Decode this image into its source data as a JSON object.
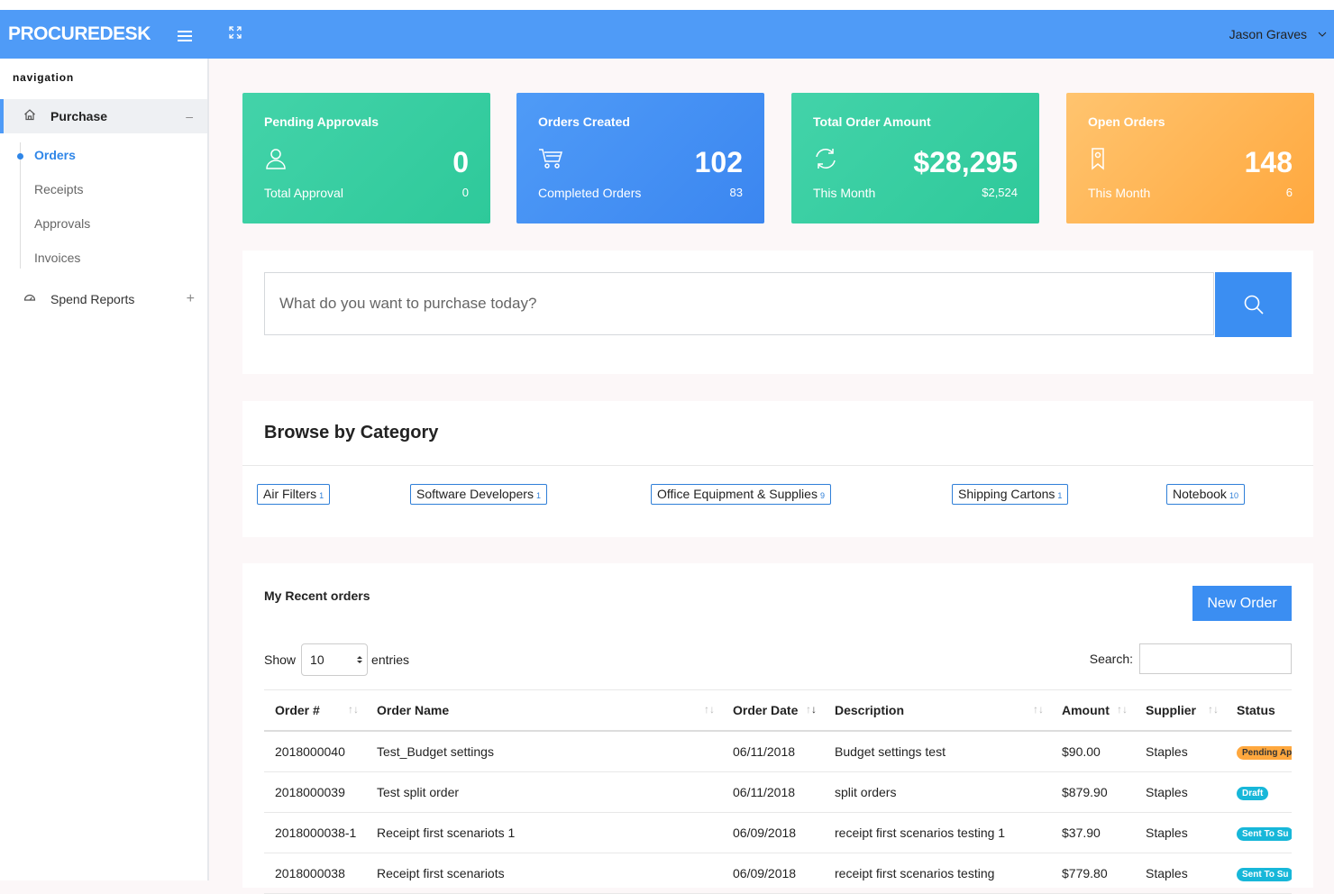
{
  "app": {
    "brand": "PROCUREDESK",
    "user_name": "Jason Graves"
  },
  "colors": {
    "primary": "#4f9bf7",
    "green": "#2ec99a",
    "orange": "#ffa83e",
    "link": "#2f86e8"
  },
  "sidebar": {
    "heading": "navigation",
    "purchase": {
      "label": "Purchase",
      "toggle": "–"
    },
    "items": [
      {
        "label": "Orders",
        "active": true
      },
      {
        "label": "Receipts"
      },
      {
        "label": "Approvals"
      },
      {
        "label": "Invoices"
      }
    ],
    "spend": {
      "label": "Spend Reports",
      "toggle": "+"
    }
  },
  "cards": [
    {
      "title": "Pending Approvals",
      "value": "0",
      "sub_label": "Total Approval",
      "sub_value": "0",
      "icon": "user-icon"
    },
    {
      "title": "Orders Created",
      "value": "102",
      "sub_label": "Completed Orders",
      "sub_value": "83",
      "icon": "cart-icon"
    },
    {
      "title": "Total Order Amount",
      "value": "$28,295",
      "sub_label": "This Month",
      "sub_value": "$2,524",
      "icon": "refresh-icon"
    },
    {
      "title": "Open Orders",
      "value": "148",
      "sub_label": "This Month",
      "sub_value": "6",
      "icon": "bookmark-icon"
    }
  ],
  "search": {
    "placeholder": "What do you want to purchase today?"
  },
  "categories": {
    "title": "Browse by Category",
    "items": [
      {
        "name": "Air Filters",
        "count": "1"
      },
      {
        "name": "Software Developers",
        "count": "1"
      },
      {
        "name": "Office Equipment & Supplies",
        "count": "9"
      },
      {
        "name": "Shipping Cartons",
        "count": "1"
      },
      {
        "name": "Notebook",
        "count": "10"
      }
    ]
  },
  "orders": {
    "title": "My Recent orders",
    "new_order": "New Order",
    "show_label": "Show",
    "page_length": "10",
    "entries_label": "entries",
    "search_label": "Search:",
    "columns": [
      "Order #",
      "Order Name",
      "Order Date",
      "Description",
      "Amount",
      "Supplier",
      "Status"
    ],
    "rows": [
      {
        "order": "2018000040",
        "name": "Test_Budget settings",
        "date": "06/11/2018",
        "description": "Budget settings test",
        "amount": "$90.00",
        "supplier": "Staples",
        "status": "Pending Ap"
      },
      {
        "order": "2018000039",
        "name": "Test split order",
        "date": "06/11/2018",
        "description": "split orders",
        "amount": "$879.90",
        "supplier": "Staples",
        "status": "Draft"
      },
      {
        "order": "2018000038-1",
        "name": "Receipt first scenariots 1",
        "date": "06/09/2018",
        "description": "receipt first scenarios testing 1",
        "amount": "$37.90",
        "supplier": "Staples",
        "status": "Sent To Su"
      },
      {
        "order": "2018000038",
        "name": "Receipt first scenariots",
        "date": "06/09/2018",
        "description": "receipt first scenarios testing",
        "amount": "$779.80",
        "supplier": "Staples",
        "status": "Sent To Su"
      }
    ]
  }
}
